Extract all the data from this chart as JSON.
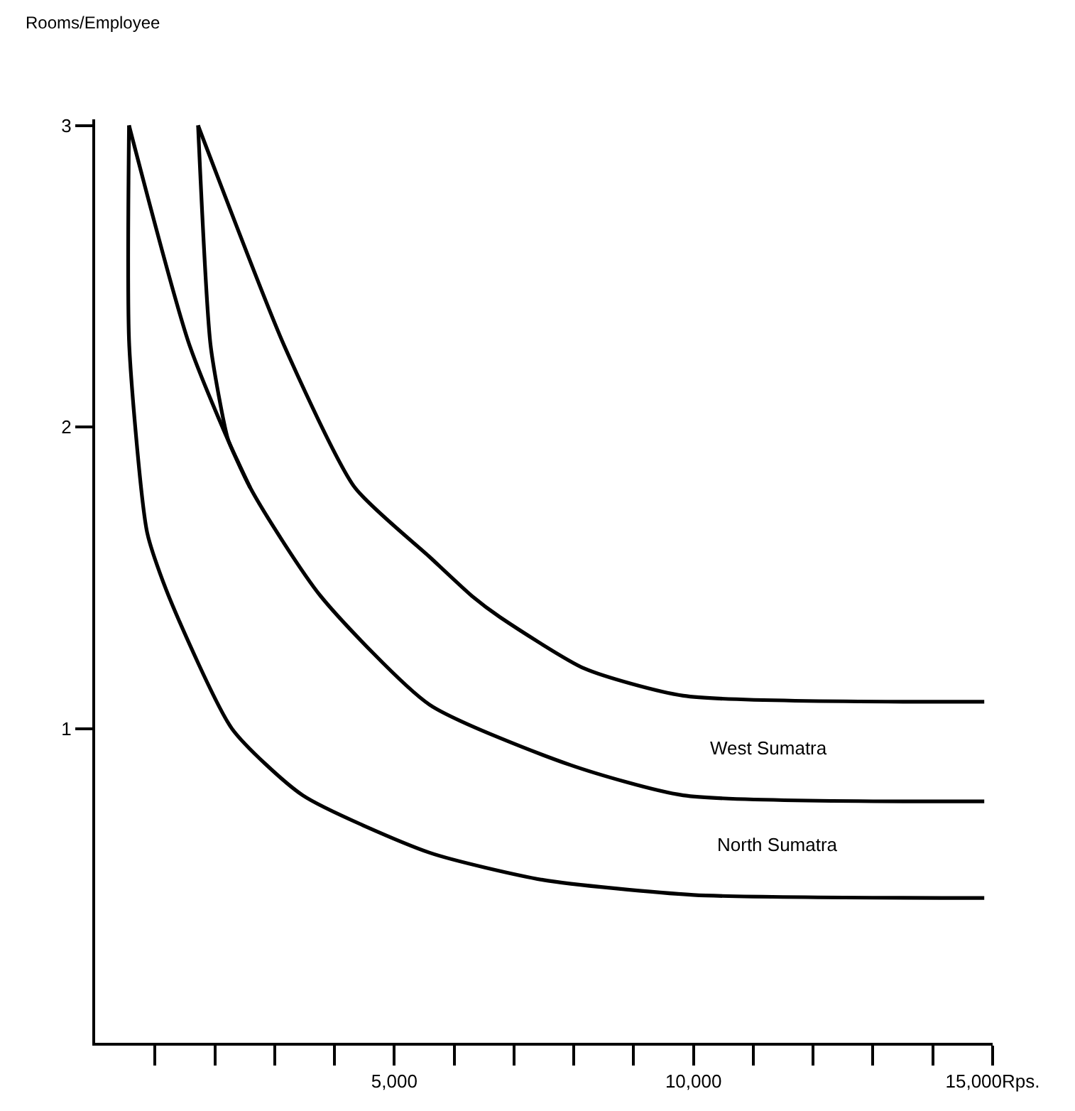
{
  "chart_data": {
    "type": "line",
    "ylabel": "Rooms/Employee",
    "xlim": [
      0,
      15000
    ],
    "ylim": [
      -0.04,
      3.02
    ],
    "xticks": [
      {
        "value": 1000,
        "label": null
      },
      {
        "value": 2000,
        "label": null
      },
      {
        "value": 3000,
        "label": null
      },
      {
        "value": 4000,
        "label": null
      },
      {
        "value": 5000,
        "label": "5,000"
      },
      {
        "value": 6000,
        "label": null
      },
      {
        "value": 7000,
        "label": null
      },
      {
        "value": 8000,
        "label": null
      },
      {
        "value": 9000,
        "label": null
      },
      {
        "value": 10000,
        "label": "10,000"
      },
      {
        "value": 11000,
        "label": null
      },
      {
        "value": 12000,
        "label": null
      },
      {
        "value": 13000,
        "label": null
      },
      {
        "value": 14000,
        "label": null
      },
      {
        "value": 15000,
        "label": "15,000Rps."
      }
    ],
    "yticks": [
      1,
      2,
      3
    ],
    "series": [
      {
        "color": "#000000",
        "x": [
          566,
          570,
          870,
          1230,
          2290,
          3470,
          5590,
          7480,
          10000,
          14860
        ],
        "values": [
          3,
          2.27,
          1.65,
          1.44,
          1.0,
          0.78,
          0.59,
          0.5,
          0.45,
          0.44
        ]
      },
      {
        "color": "#000000",
        "x": [
          566,
          1580,
          2590,
          3770,
          5590,
          7950,
          9830,
          14860
        ],
        "values": [
          3,
          2.27,
          1.8,
          1.44,
          1.08,
          0.88,
          0.78,
          0.76
        ]
      },
      {
        "color": "#000000",
        "x": [
          1720,
          3160,
          4340,
          5590,
          6300,
          6770,
          8180,
          9830,
          14860
        ],
        "values": [
          3,
          2.27,
          1.8,
          1.57,
          1.44,
          1.37,
          1.2,
          1.11,
          1.09
        ]
      },
      {
        "color": "#000000",
        "x": [
          1720,
          1930,
          2220,
          2400,
          2590
        ],
        "values": [
          3,
          2.27,
          1.96,
          1.88,
          1.8
        ]
      }
    ],
    "annotations": [
      "West Sumatra",
      "North Sumatra"
    ],
    "marker": "none",
    "line_style": "solid"
  }
}
